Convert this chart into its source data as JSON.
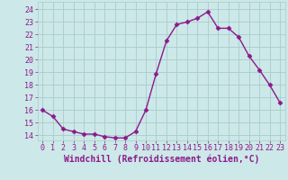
{
  "x": [
    0,
    1,
    2,
    3,
    4,
    5,
    6,
    7,
    8,
    9,
    10,
    11,
    12,
    13,
    14,
    15,
    16,
    17,
    18,
    19,
    20,
    21,
    22,
    23
  ],
  "y": [
    16.0,
    15.5,
    14.5,
    14.3,
    14.1,
    14.1,
    13.9,
    13.8,
    13.8,
    14.3,
    16.0,
    18.9,
    21.5,
    22.8,
    23.0,
    23.3,
    23.8,
    22.5,
    22.5,
    21.8,
    20.3,
    19.2,
    18.0,
    16.6
  ],
  "line_color": "#8b1a8b",
  "marker": "D",
  "marker_size": 2.5,
  "linewidth": 1.0,
  "bg_color": "#cce8e8",
  "grid_color": "#aacccc",
  "xlabel": "Windchill (Refroidissement éolien,°C)",
  "xlabel_fontsize": 7,
  "xlabel_color": "#8b1a8b",
  "yticks": [
    14,
    15,
    16,
    17,
    18,
    19,
    20,
    21,
    22,
    23,
    24
  ],
  "xticks": [
    0,
    1,
    2,
    3,
    4,
    5,
    6,
    7,
    8,
    9,
    10,
    11,
    12,
    13,
    14,
    15,
    16,
    17,
    18,
    19,
    20,
    21,
    22,
    23
  ],
  "ylim": [
    13.6,
    24.6
  ],
  "xlim": [
    -0.5,
    23.5
  ],
  "tick_fontsize": 6,
  "tick_color": "#8b1a8b"
}
